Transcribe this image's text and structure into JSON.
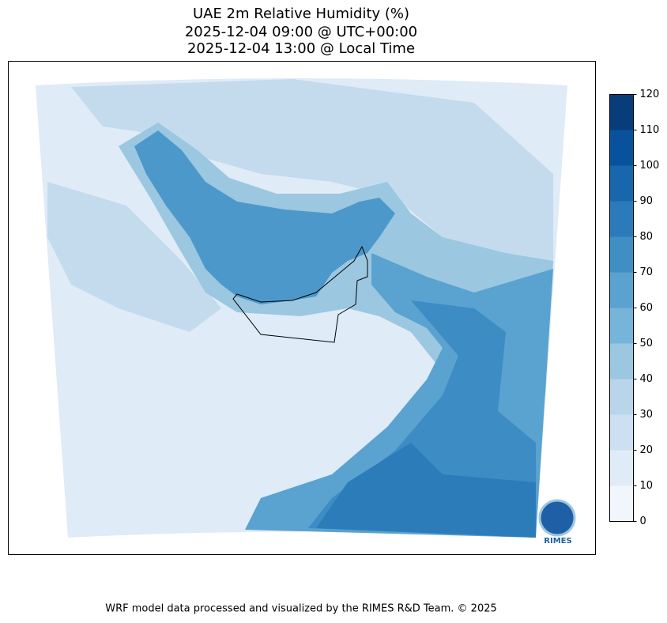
{
  "title": [
    "UAE 2m Relative Humidity (%)",
    "2025-12-04 09:00 @ UTC+00:00",
    "2025-12-04 13:00 @ Local Time"
  ],
  "colorbar": {
    "ticks": [
      0,
      10,
      20,
      30,
      40,
      50,
      60,
      70,
      80,
      90,
      100,
      110,
      120
    ],
    "colors": [
      "#f0f6fc",
      "#dfebf7",
      "#cde0f1",
      "#b8d5ea",
      "#9bc7e0",
      "#77b4d9",
      "#5aa2cf",
      "#3f8ec4",
      "#2b7bba",
      "#1866ac",
      "#08529d",
      "#083c7b"
    ]
  },
  "footer": "WRF model data processed and visualized by the RIMES R&D Team. © 2025",
  "logo": {
    "text": "RIMES"
  }
}
